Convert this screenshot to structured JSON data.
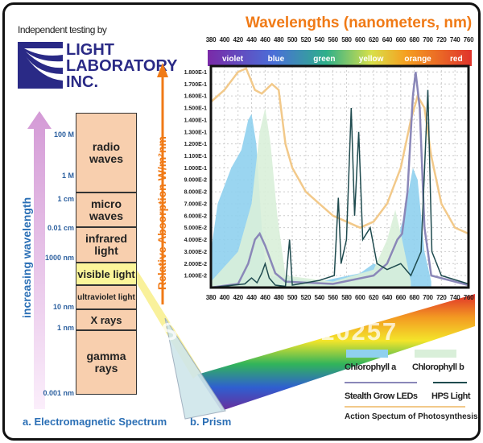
{
  "header": {
    "independent": "Independent testing by",
    "logo_lines": [
      "LIGHT",
      "LABORATORY",
      "INC."
    ]
  },
  "em_spectrum": {
    "axis_label": "increasing wavelength",
    "bands": [
      "radio waves",
      "micro waves",
      "infrared light",
      "visible light",
      "ultraviolet light",
      "X rays",
      "gamma rays"
    ],
    "ticks": [
      "100 M",
      "1 M",
      "1 cm",
      "0.01 cm",
      "1000 nm",
      "10 nm",
      "1 nm",
      "0.001 nm"
    ],
    "caption": "a. Electromagnetic Spectrum"
  },
  "prism": {
    "caption": "b. Prism"
  },
  "watermark": "Store No : 410257",
  "chart_data": {
    "type": "area",
    "title": "Wavelengths (nanometers, nm)",
    "ylabel": "Relative Absorption W/m²nm",
    "x_ticks": [
      380,
      400,
      420,
      440,
      460,
      480,
      500,
      520,
      540,
      560,
      580,
      600,
      620,
      640,
      660,
      680,
      700,
      720,
      740,
      760
    ],
    "xlim": [
      380,
      760
    ],
    "y_ticks": [
      "1.000E-2",
      "2.000E-2",
      "3.000E-2",
      "4.000E-2",
      "5.000E-2",
      "6.000E-2",
      "7.000E-2",
      "8.000E-2",
      "9.000E-2",
      "1.000E-1",
      "1.100E-1",
      "1.200E-1",
      "1.300E-1",
      "1.400E-1",
      "1.500E-1",
      "1.600E-1",
      "1.700E-1",
      "1.800E-1"
    ],
    "ylim": [
      0,
      0.185
    ],
    "color_bands": [
      "violet",
      "blue",
      "green",
      "yellow",
      "orange",
      "red"
    ],
    "grid": true,
    "series": [
      {
        "name": "Chlorophyll a",
        "kind": "area",
        "color": "#8fd0ee",
        "points": [
          [
            380,
            0.03
          ],
          [
            390,
            0.07
          ],
          [
            410,
            0.1
          ],
          [
            425,
            0.115
          ],
          [
            435,
            0.14
          ],
          [
            440,
            0.145
          ],
          [
            447,
            0.12
          ],
          [
            455,
            0.05
          ],
          [
            462,
            0.01
          ],
          [
            540,
            0.005
          ],
          [
            600,
            0.012
          ],
          [
            620,
            0.02
          ],
          [
            640,
            0.015
          ],
          [
            650,
            0.03
          ],
          [
            665,
            0.06
          ],
          [
            678,
            0.1
          ],
          [
            685,
            0.09
          ],
          [
            695,
            0.03
          ],
          [
            705,
            0.005
          ]
        ]
      },
      {
        "name": "Chlorophyll b",
        "kind": "area",
        "color": "#d9efd9",
        "points": [
          [
            380,
            0.005
          ],
          [
            420,
            0.03
          ],
          [
            440,
            0.07
          ],
          [
            452,
            0.13
          ],
          [
            460,
            0.15
          ],
          [
            468,
            0.12
          ],
          [
            478,
            0.06
          ],
          [
            490,
            0.01
          ],
          [
            560,
            0.005
          ],
          [
            620,
            0.015
          ],
          [
            640,
            0.04
          ],
          [
            652,
            0.065
          ],
          [
            662,
            0.04
          ],
          [
            675,
            0.005
          ]
        ]
      },
      {
        "name": "Action Spectum of Photosynthesis",
        "kind": "line",
        "color": "#f2c98a",
        "points": [
          [
            380,
            0.155
          ],
          [
            400,
            0.165
          ],
          [
            420,
            0.18
          ],
          [
            432,
            0.183
          ],
          [
            445,
            0.165
          ],
          [
            455,
            0.162
          ],
          [
            470,
            0.17
          ],
          [
            480,
            0.165
          ],
          [
            490,
            0.12
          ],
          [
            500,
            0.1
          ],
          [
            520,
            0.08
          ],
          [
            540,
            0.07
          ],
          [
            560,
            0.06
          ],
          [
            580,
            0.055
          ],
          [
            600,
            0.05
          ],
          [
            620,
            0.055
          ],
          [
            640,
            0.07
          ],
          [
            660,
            0.1
          ],
          [
            675,
            0.14
          ],
          [
            685,
            0.16
          ],
          [
            695,
            0.15
          ],
          [
            705,
            0.11
          ],
          [
            720,
            0.07
          ],
          [
            740,
            0.05
          ],
          [
            760,
            0.045
          ]
        ]
      },
      {
        "name": "Stealth Grow LEDs",
        "kind": "line",
        "color": "#8a87b8",
        "points": [
          [
            380,
            0.0
          ],
          [
            420,
            0.003
          ],
          [
            435,
            0.02
          ],
          [
            445,
            0.04
          ],
          [
            452,
            0.045
          ],
          [
            460,
            0.035
          ],
          [
            475,
            0.012
          ],
          [
            490,
            0.005
          ],
          [
            560,
            0.003
          ],
          [
            620,
            0.01
          ],
          [
            640,
            0.02
          ],
          [
            655,
            0.04
          ],
          [
            662,
            0.045
          ],
          [
            670,
            0.08
          ],
          [
            678,
            0.16
          ],
          [
            682,
            0.18
          ],
          [
            688,
            0.15
          ],
          [
            695,
            0.05
          ],
          [
            705,
            0.01
          ],
          [
            760,
            0.002
          ]
        ]
      },
      {
        "name": "HPS Light",
        "kind": "line",
        "color": "#1f4b4f",
        "points": [
          [
            380,
            0
          ],
          [
            430,
            0.003
          ],
          [
            440,
            0.008
          ],
          [
            448,
            0.004
          ],
          [
            455,
            0.012
          ],
          [
            460,
            0.02
          ],
          [
            466,
            0.008
          ],
          [
            475,
            0.002
          ],
          [
            490,
            0.001
          ],
          [
            496,
            0.04
          ],
          [
            500,
            0.002
          ],
          [
            520,
            0.004
          ],
          [
            540,
            0.006
          ],
          [
            562,
            0.01
          ],
          [
            568,
            0.075
          ],
          [
            572,
            0.02
          ],
          [
            580,
            0.04
          ],
          [
            587,
            0.15
          ],
          [
            592,
            0.06
          ],
          [
            598,
            0.13
          ],
          [
            604,
            0.04
          ],
          [
            615,
            0.05
          ],
          [
            625,
            0.02
          ],
          [
            640,
            0.015
          ],
          [
            660,
            0.02
          ],
          [
            675,
            0.01
          ],
          [
            690,
            0.03
          ],
          [
            700,
            0.165
          ],
          [
            706,
            0.03
          ],
          [
            720,
            0.01
          ],
          [
            760,
            0.003
          ]
        ]
      }
    ]
  },
  "legend": {
    "chl_a": "Chlorophyll a",
    "chl_b": "Chlorophyll b",
    "led": "Stealth Grow LEDs",
    "hps": "HPS Light",
    "action": "Action Spectum of Photosynthesis"
  }
}
